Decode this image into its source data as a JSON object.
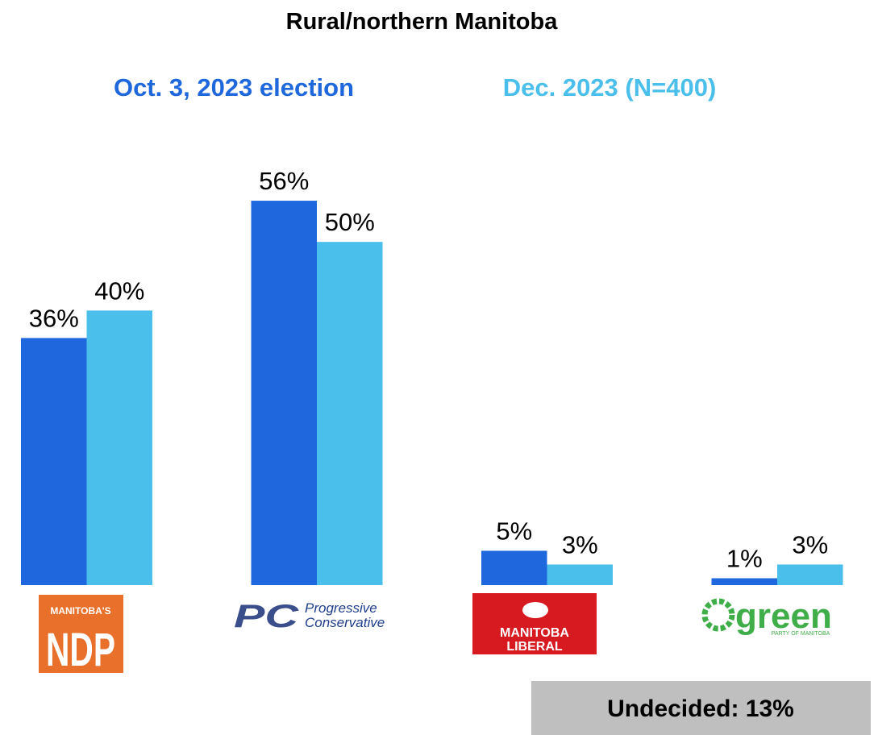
{
  "chart_data": {
    "type": "bar",
    "title": "Rural/northern Manitoba",
    "categories": [
      [
        "MANITOBA'S",
        "NDP"
      ],
      [
        "PC",
        "Progressive",
        "Conservative"
      ],
      [
        "MANITOBA",
        "LIBERAL"
      ],
      [
        "green",
        "PARTY OF MANITOBA"
      ]
    ],
    "series": [
      {
        "name": "Oct. 3, 2023 election",
        "color": "#1f67dd",
        "values": [
          36,
          56,
          5,
          1
        ]
      },
      {
        "name": "Dec. 2023 (N=400)",
        "color": "#4bbfec",
        "values": [
          40,
          50,
          3,
          3
        ]
      }
    ],
    "value_labels": [
      [
        "36%",
        "56%",
        "5%",
        "1%"
      ],
      [
        "40%",
        "50%",
        "3%",
        "3%"
      ]
    ],
    "ylim": [
      0,
      60
    ],
    "annotation": "Undecided: 13%"
  }
}
